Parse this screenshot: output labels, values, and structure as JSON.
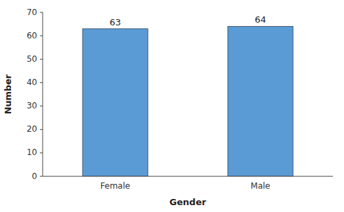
{
  "chart_data": {
    "type": "bar",
    "categories": [
      "Female",
      "Male"
    ],
    "values": [
      63,
      64
    ],
    "color": "#5B9BD5",
    "xlabel": "Gender",
    "ylabel": "Number",
    "ylim": [
      0,
      70
    ],
    "yticks": [
      0,
      10,
      20,
      30,
      40,
      50,
      60,
      70
    ],
    "data_labels": true,
    "grid": false
  }
}
